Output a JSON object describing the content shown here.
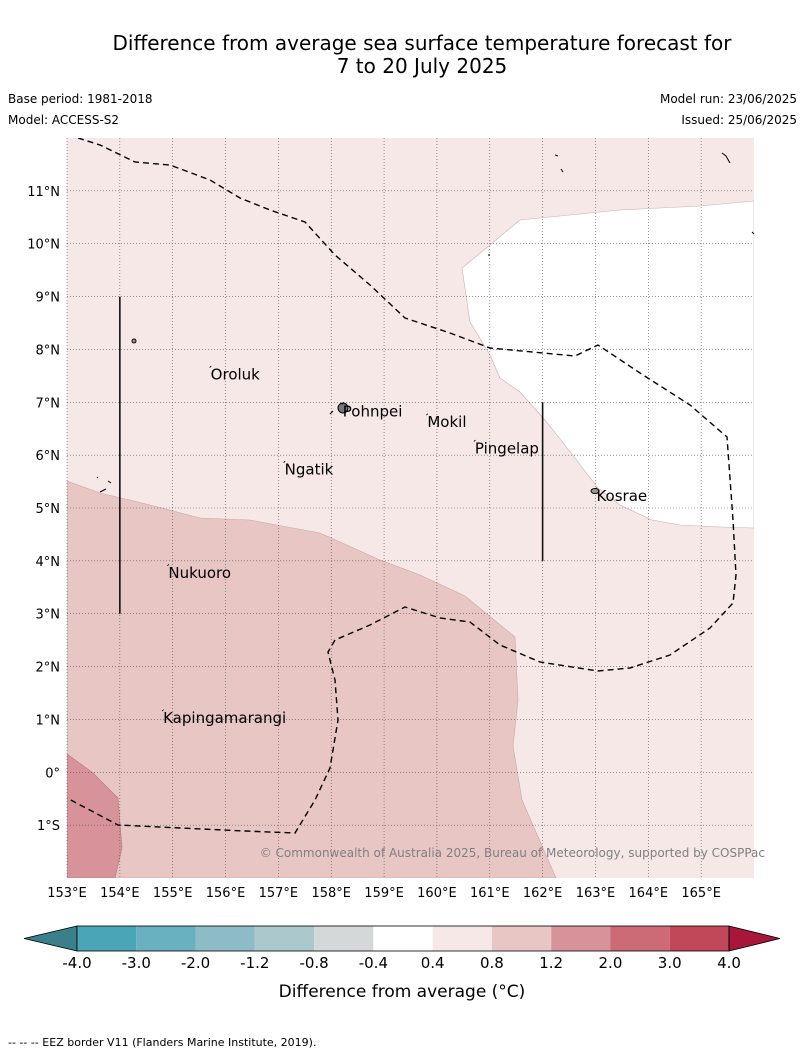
{
  "header": {
    "title_line1": "Difference from average sea surface temperature forecast for",
    "title_line2": "7 to 20 July 2025",
    "base_period": "Base period: 1981-2018",
    "model": "Model: ACCESS-S2",
    "model_run": "Model run: 23/06/2025",
    "issued": "Issued: 25/06/2025"
  },
  "map": {
    "lon_range": [
      153,
      166
    ],
    "lat_range": [
      -2,
      12
    ],
    "lon_ticks": [
      {
        "value": 153,
        "label": "153°E"
      },
      {
        "value": 154,
        "label": "154°E"
      },
      {
        "value": 155,
        "label": "155°E"
      },
      {
        "value": 156,
        "label": "156°E"
      },
      {
        "value": 157,
        "label": "157°E"
      },
      {
        "value": 158,
        "label": "158°E"
      },
      {
        "value": 159,
        "label": "159°E"
      },
      {
        "value": 160,
        "label": "160°E"
      },
      {
        "value": 161,
        "label": "161°E"
      },
      {
        "value": 162,
        "label": "162°E"
      },
      {
        "value": 163,
        "label": "163°E"
      },
      {
        "value": 164,
        "label": "164°E"
      },
      {
        "value": 165,
        "label": "165°E"
      }
    ],
    "lat_ticks": [
      {
        "value": 11,
        "label": "11°N"
      },
      {
        "value": 10,
        "label": "10°N"
      },
      {
        "value": 9,
        "label": "9°N"
      },
      {
        "value": 8,
        "label": "8°N"
      },
      {
        "value": 7,
        "label": "7°N"
      },
      {
        "value": 6,
        "label": "6°N"
      },
      {
        "value": 5,
        "label": "5°N"
      },
      {
        "value": 4,
        "label": "4°N"
      },
      {
        "value": 3,
        "label": "3°N"
      },
      {
        "value": 2,
        "label": "2°N"
      },
      {
        "value": 1,
        "label": "1°N"
      },
      {
        "value": 0,
        "label": "0°"
      },
      {
        "value": -1,
        "label": "1°S"
      }
    ],
    "places": [
      {
        "name": "Oroluk",
        "lon": 155.7,
        "lat": 7.6
      },
      {
        "name": "Pohnpei",
        "lon": 158.2,
        "lat": 6.9
      },
      {
        "name": "Mokil",
        "lon": 159.8,
        "lat": 6.7
      },
      {
        "name": "Pingelap",
        "lon": 160.7,
        "lat": 6.2
      },
      {
        "name": "Ngatik",
        "lon": 157.1,
        "lat": 5.8
      },
      {
        "name": "Kosrae",
        "lon": 163.0,
        "lat": 5.3
      },
      {
        "name": "Nukuoro",
        "lon": 154.9,
        "lat": 3.85
      },
      {
        "name": "Kapingamarangi",
        "lon": 154.8,
        "lat": 1.1
      }
    ],
    "vertical_lines": [
      {
        "lon": 154,
        "lat_from": 9,
        "lat_to": 3
      },
      {
        "lon": 162,
        "lat_from": 7,
        "lat_to": 4
      }
    ],
    "copyright": "© Commonwealth of Australia 2025, Bureau of Meteorology, supported by COSPPac",
    "colors": {
      "bin_0_4_0_8": "#f5e8e7",
      "bin_0_8_1_2": "#e8c6c3",
      "bin_1_2_2_0": "#d8939a",
      "bin_neutral": "#ffffff"
    }
  },
  "colorbar": {
    "title": "Difference from average (°C)",
    "tick_labels": [
      "-4.0",
      "-3.0",
      "-2.0",
      "-1.2",
      "-0.8",
      "-0.4",
      "0.4",
      "0.8",
      "1.2",
      "2.0",
      "3.0",
      "4.0"
    ],
    "under_color": "#3c7f8c",
    "over_color": "#a8173a",
    "bin_colors": [
      "#4aa5b6",
      "#69b1c0",
      "#8dbcc7",
      "#abc9cc",
      "#d4d8d8",
      "#ffffff",
      "#f5e8e7",
      "#e8c6c3",
      "#d8939a",
      "#cc6b76",
      "#c04858"
    ]
  },
  "footer": {
    "legend_text": "--  --  -- EEZ border V11 (Flanders Marine Institute, 2019)."
  }
}
